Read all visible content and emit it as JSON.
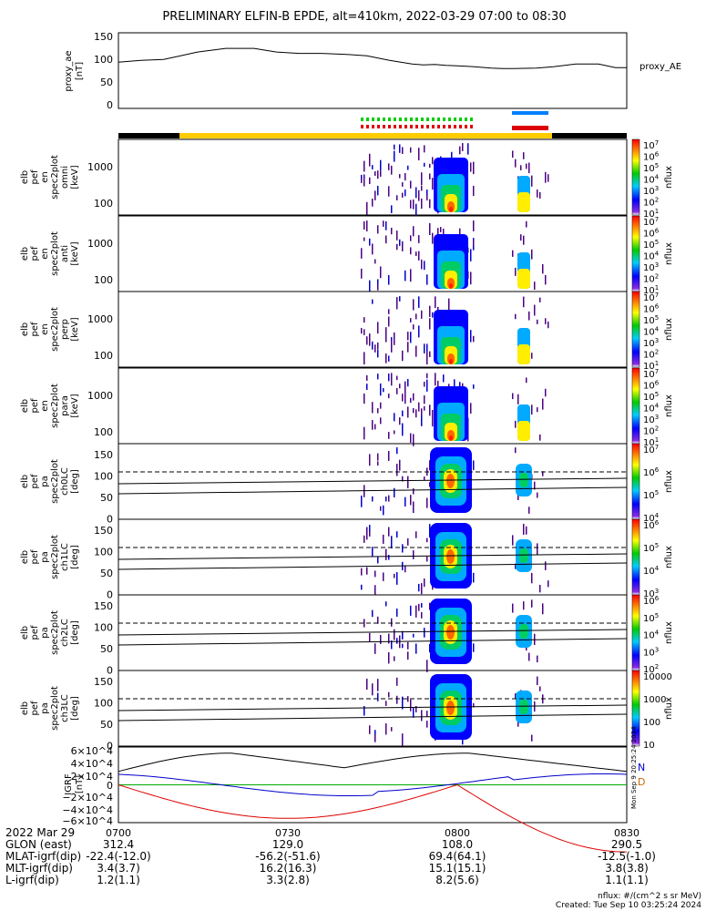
{
  "title": "PRELIMINARY ELFIN-B EPDE, alt=410km, 2022-03-29 07:00 to 08:30",
  "chart_data": [
    {
      "type": "line",
      "name": "proxy_ae",
      "ylabel_lines": [
        "proxy_ae",
        "[nT]"
      ],
      "legend": "proxy_AE",
      "yticks": [
        "150",
        "100",
        "50",
        "0"
      ],
      "ylim": [
        0,
        150
      ],
      "x_minutes": [
        0,
        4,
        8,
        11,
        14,
        19,
        24,
        28,
        32,
        36,
        40,
        44,
        48,
        52,
        54,
        56,
        58,
        60,
        63,
        66,
        68,
        70,
        74,
        77,
        81,
        85,
        88,
        90
      ],
      "values": [
        96,
        100,
        102,
        110,
        118,
        126,
        126,
        118,
        115,
        115,
        113,
        110,
        100,
        92,
        90,
        91,
        89,
        88,
        86,
        83,
        82,
        82,
        83,
        86,
        92,
        92,
        84,
        84
      ]
    },
    {
      "type": "heatmap",
      "name": "elb_pef_en_spec2plot_omni",
      "ylabel_lines": [
        "elb",
        "pef",
        "en",
        "spec2plot",
        "omni",
        "[keV]"
      ],
      "yticks": [
        "1000",
        "100"
      ],
      "colorbar_ticks": [
        "10^7",
        "10^6",
        "10^5",
        "10^4",
        "10^3",
        "10^2",
        "10^1"
      ],
      "colorbar_label": "nflux"
    },
    {
      "type": "heatmap",
      "name": "elb_pef_en_spec2plot_anti",
      "ylabel_lines": [
        "elb",
        "pef",
        "en",
        "spec2plot",
        "anti",
        "[keV]"
      ],
      "yticks": [
        "1000",
        "100"
      ],
      "colorbar_ticks": [
        "10^7",
        "10^6",
        "10^5",
        "10^4",
        "10^3",
        "10^2",
        "10^1"
      ],
      "colorbar_label": "nflux"
    },
    {
      "type": "heatmap",
      "name": "elb_pef_en_spec2plot_perp",
      "ylabel_lines": [
        "elb",
        "pef",
        "en",
        "spec2plot",
        "perp",
        "[keV]"
      ],
      "yticks": [
        "1000",
        "100"
      ],
      "colorbar_ticks": [
        "10^7",
        "10^6",
        "10^5",
        "10^4",
        "10^3",
        "10^2",
        "10^1"
      ],
      "colorbar_label": "nflux"
    },
    {
      "type": "heatmap",
      "name": "elb_pef_en_spec2plot_para",
      "ylabel_lines": [
        "elb",
        "pef",
        "en",
        "spec2plot",
        "para",
        "[keV]"
      ],
      "yticks": [
        "1000",
        "100"
      ],
      "colorbar_ticks": [
        "10^7",
        "10^6",
        "10^5",
        "10^4",
        "10^3",
        "10^2",
        "10^1"
      ],
      "colorbar_label": "nflux"
    },
    {
      "type": "heatmap",
      "name": "elb_pef_pa_spec2plot_ch0LC",
      "ylabel_lines": [
        "elb",
        "pef",
        "pa",
        "spec2plot",
        "ch0LC",
        "[deg]"
      ],
      "yticks": [
        "150",
        "100",
        "50",
        "0"
      ],
      "colorbar_ticks": [
        "10^7",
        "10^6",
        "10^5",
        "10^4"
      ],
      "colorbar_label": "nflux"
    },
    {
      "type": "heatmap",
      "name": "elb_pef_pa_spec2plot_ch1LC",
      "ylabel_lines": [
        "elb",
        "pef",
        "pa",
        "spec2plot",
        "ch1LC",
        "[deg]"
      ],
      "yticks": [
        "150",
        "100",
        "50",
        "0"
      ],
      "colorbar_ticks": [
        "10^6",
        "10^5",
        "10^4",
        "10^3"
      ],
      "colorbar_label": "nflux"
    },
    {
      "type": "heatmap",
      "name": "elb_pef_pa_spec2plot_ch2LC",
      "ylabel_lines": [
        "elb",
        "pef",
        "pa",
        "spec2plot",
        "ch2LC",
        "[deg]"
      ],
      "yticks": [
        "150",
        "100",
        "50",
        "0"
      ],
      "colorbar_ticks": [
        "10^6",
        "10^5",
        "10^4",
        "10^3",
        "10^2"
      ],
      "colorbar_label": "nflux"
    },
    {
      "type": "heatmap",
      "name": "elb_pef_pa_spec2plot_ch3LC",
      "ylabel_lines": [
        "elb",
        "pef",
        "pa",
        "spec2plot",
        "ch3LC",
        "[deg]"
      ],
      "yticks": [
        "150",
        "100",
        "50",
        "0"
      ],
      "colorbar_ticks": [
        "10000",
        "1000",
        "100",
        "10"
      ],
      "colorbar_label": "nflux"
    },
    {
      "type": "line",
      "name": "IGRF",
      "ylabel_lines": [
        "IGRF",
        "[nT]"
      ],
      "yticks": [
        "6×10^4",
        "4×10^4",
        "2×10^4",
        "0",
        "−2×10^4",
        "−4×10^4",
        "−6×10^4"
      ],
      "ylim": [
        -60000,
        60000
      ],
      "legend": [
        "N",
        "D"
      ],
      "series": [
        {
          "name": "N",
          "color": "#0000cc"
        },
        {
          "name": "D",
          "color": "#cc6600"
        }
      ]
    }
  ],
  "xticks": [
    "0700",
    "0730",
    "0800",
    "0830"
  ],
  "side_note": "Mon Sep 9 20:25:24 2024",
  "orbit": {
    "labels": [
      "2022 Mar 29",
      "GLON (east)",
      "MLAT-igrf(dip)",
      "MLT-igrf(dip)",
      "L-igrf(dip)"
    ],
    "values": [
      [
        "0700",
        "0730",
        "0800",
        "0830"
      ],
      [
        "312.4",
        "129.0",
        "108.0",
        "290.5"
      ],
      [
        "-22.4(-12.0)",
        "-56.2(-51.6)",
        "69.4(64.1)",
        "-12.5(-1.0)"
      ],
      [
        "3.4(3.7)",
        "16.2(16.3)",
        "15.1(15.1)",
        "3.8(3.8)"
      ],
      [
        "1.2(1.1)",
        "3.3(2.8)",
        "8.2(5.6)",
        "1.1(1.1)"
      ]
    ]
  },
  "footer": {
    "units": "nflux: #/(cm^2 s sr MeV)",
    "created": "Created: Tue Sep 10 03:25:24 2024"
  }
}
